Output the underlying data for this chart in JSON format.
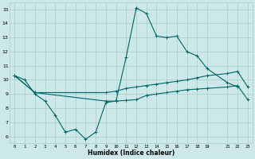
{
  "xlabel": "Humidex (Indice chaleur)",
  "bg_color": "#cce8e8",
  "grid_color": "#aacccc",
  "line_color": "#006666",
  "line1_x": [
    0,
    1,
    2,
    3,
    4,
    5,
    6,
    7,
    8,
    9,
    10,
    11,
    12,
    13,
    14,
    15,
    16,
    17,
    18,
    19,
    21,
    22
  ],
  "line1_y": [
    10.3,
    10.0,
    9.0,
    8.5,
    7.5,
    6.3,
    6.5,
    5.8,
    6.3,
    8.4,
    8.5,
    11.6,
    15.1,
    14.7,
    13.1,
    13.0,
    13.1,
    12.0,
    11.7,
    10.8,
    9.8,
    9.5
  ],
  "line2_x": [
    0,
    2,
    9,
    10,
    11,
    12,
    13,
    14,
    15,
    16,
    17,
    18,
    19,
    21,
    22,
    23
  ],
  "line2_y": [
    10.3,
    9.1,
    9.1,
    9.2,
    9.4,
    9.5,
    9.6,
    9.7,
    9.8,
    9.9,
    10.0,
    10.15,
    10.3,
    10.45,
    10.6,
    9.5
  ],
  "line3_x": [
    0,
    2,
    9,
    10,
    11,
    12,
    13,
    14,
    15,
    16,
    17,
    18,
    19,
    21,
    22,
    23
  ],
  "line3_y": [
    10.3,
    9.1,
    8.5,
    8.5,
    8.55,
    8.6,
    8.9,
    9.0,
    9.1,
    9.2,
    9.3,
    9.35,
    9.4,
    9.5,
    9.6,
    8.6
  ],
  "xlim": [
    -0.5,
    23.5
  ],
  "ylim": [
    5.5,
    15.5
  ],
  "xticks": [
    0,
    1,
    2,
    3,
    4,
    5,
    6,
    7,
    8,
    9,
    10,
    11,
    12,
    13,
    14,
    15,
    16,
    17,
    18,
    19,
    21,
    22,
    23
  ],
  "xtick_labels": [
    "0",
    "1",
    "2",
    "3",
    "4",
    "5",
    "6",
    "7",
    "8",
    "9",
    "10",
    "11",
    "12",
    "13",
    "14",
    "15",
    "16",
    "17",
    "18",
    "19",
    "21",
    "22",
    "23"
  ],
  "yticks": [
    6,
    7,
    8,
    9,
    10,
    11,
    12,
    13,
    14,
    15
  ],
  "ytick_labels": [
    "6",
    "7",
    "8",
    "9",
    "10",
    "11",
    "12",
    "13",
    "14",
    "15"
  ]
}
